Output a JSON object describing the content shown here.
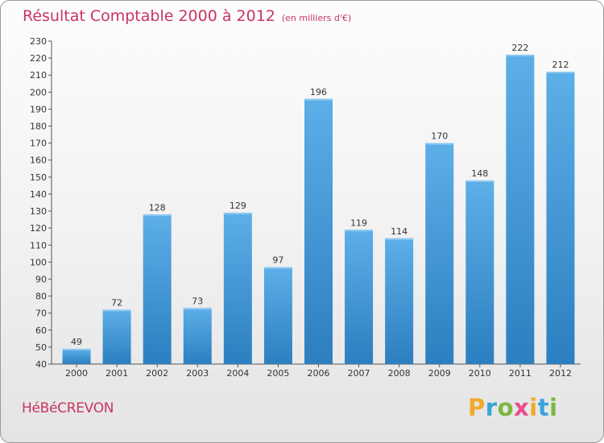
{
  "chart_data": {
    "type": "bar",
    "title": "Résultat Comptable 2000 à 2012",
    "subtitle": "(en milliers d'€)",
    "categories": [
      "2000",
      "2001",
      "2002",
      "2003",
      "2004",
      "2005",
      "2006",
      "2007",
      "2008",
      "2009",
      "2010",
      "2011",
      "2012"
    ],
    "values": [
      49,
      72,
      128,
      73,
      129,
      97,
      196,
      119,
      114,
      170,
      148,
      222,
      212
    ],
    "ylim": [
      40,
      230
    ],
    "yticks": [
      40,
      50,
      60,
      70,
      80,
      90,
      100,
      110,
      120,
      130,
      140,
      150,
      160,
      170,
      180,
      190,
      200,
      210,
      220,
      230
    ],
    "grid": false,
    "bar_color_top": "#5dafe8",
    "bar_color_bottom": "#2c7fc0"
  },
  "footer": {
    "commune": "HéBéCREVON",
    "logo": {
      "p": "P",
      "r": "r",
      "o": "o",
      "x": "x",
      "i1": "i",
      "t": "t",
      "i2": "i"
    }
  }
}
